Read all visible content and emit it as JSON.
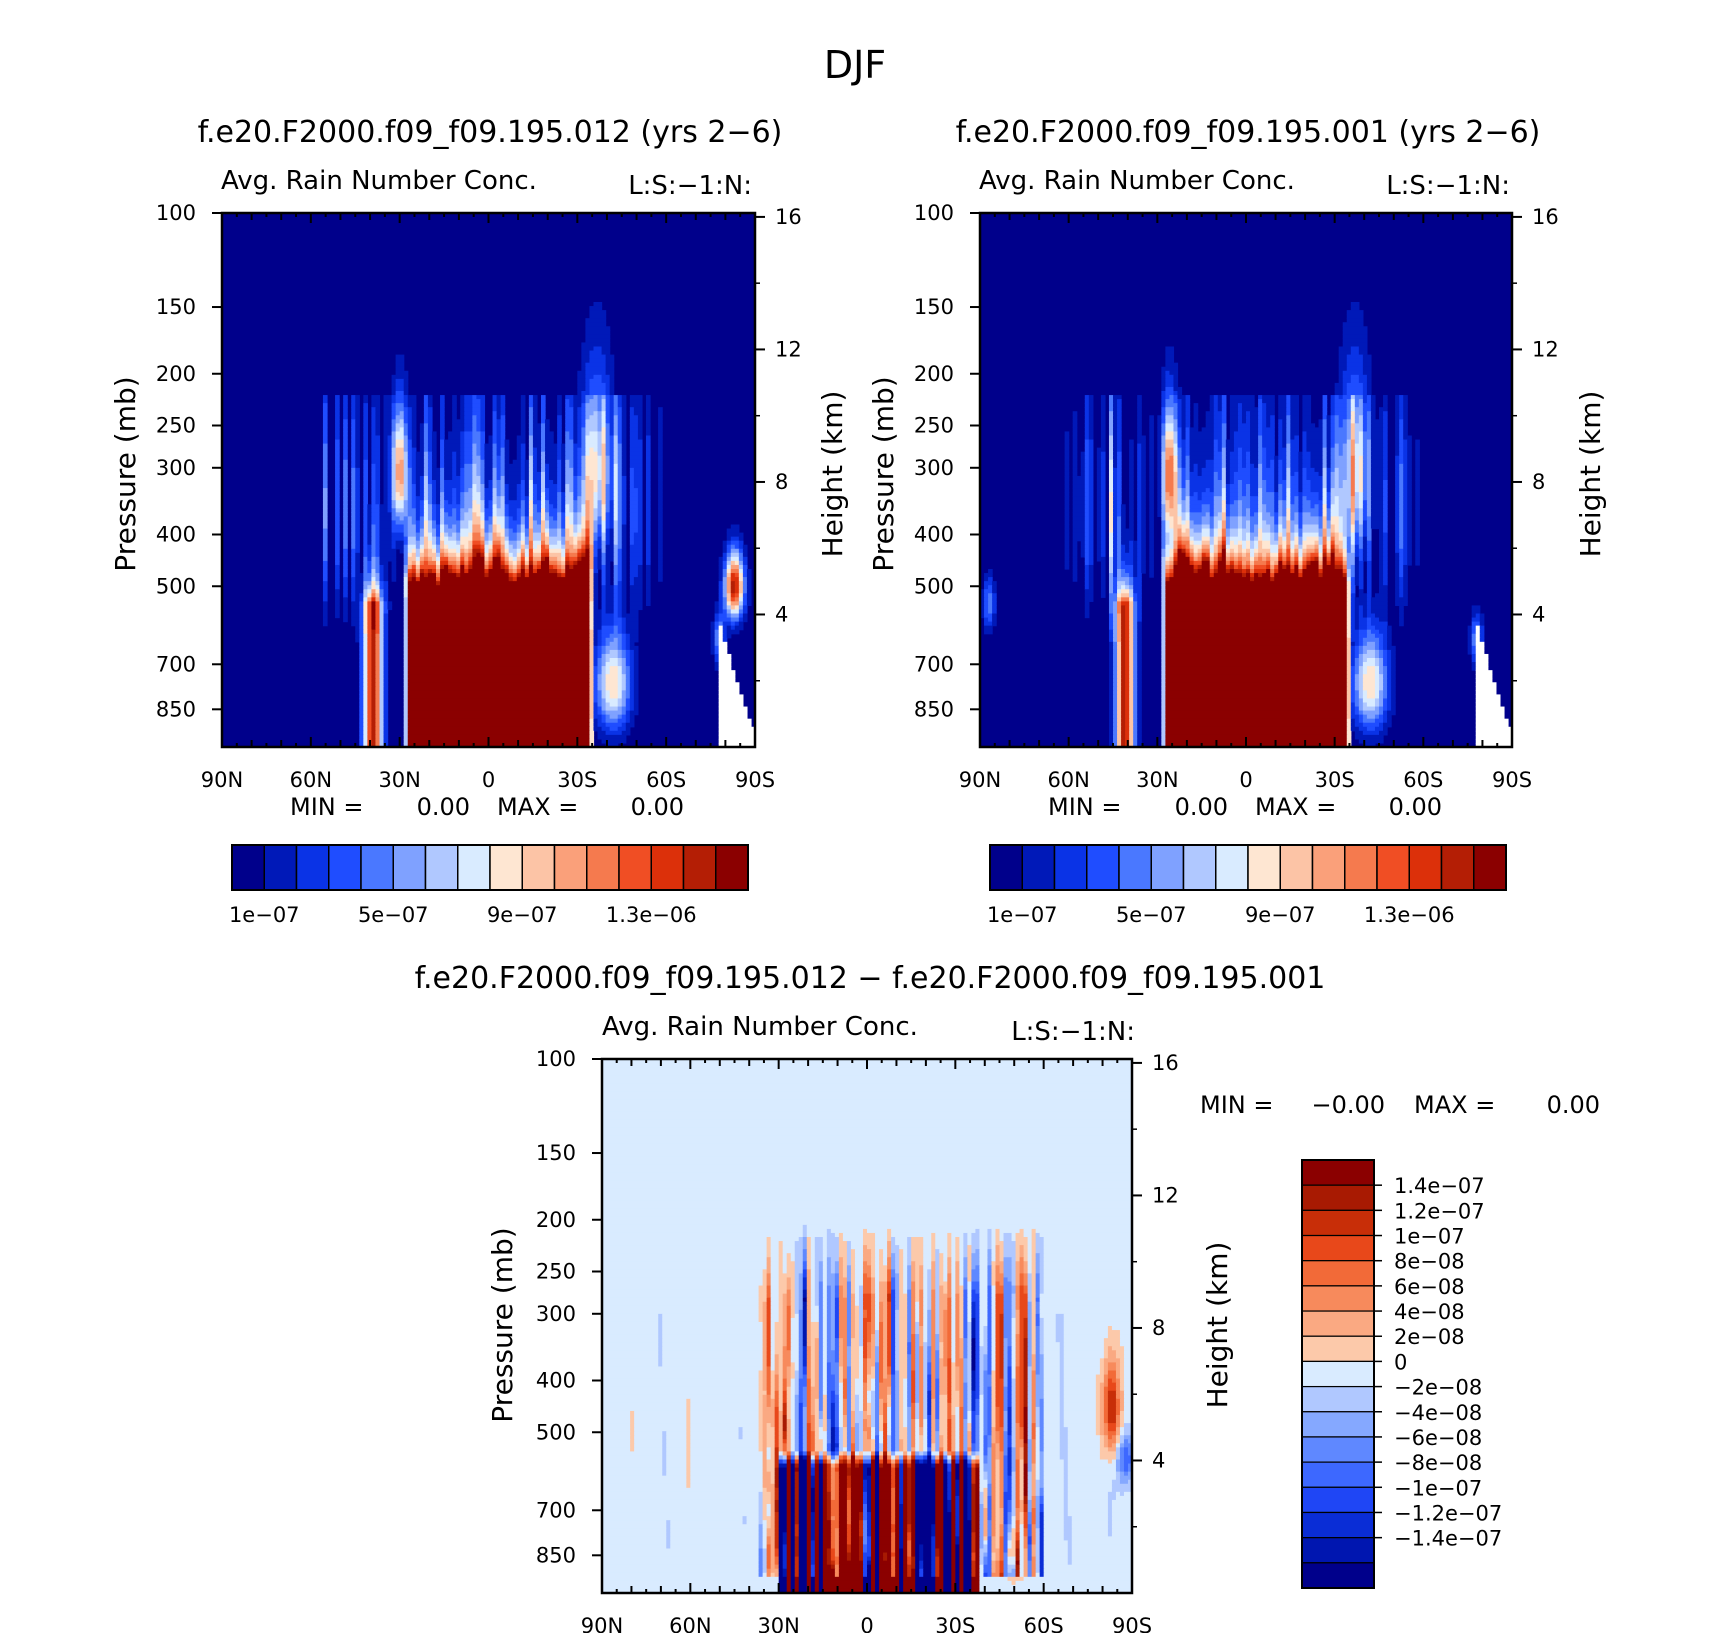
{
  "page_title": "DJF",
  "colors": {
    "blue_scale": [
      "#00008b",
      "#0019b8",
      "#0a33e6",
      "#1f4dff",
      "#4a78ff",
      "#7fa1ff",
      "#b0c8ff",
      "#d9ebff"
    ],
    "red_scale": [
      "#fee6d2",
      "#fcc4a6",
      "#faa07a",
      "#f57a4e",
      "#f04e24",
      "#dc300a",
      "#b41e05",
      "#8b0000"
    ],
    "diff_neg": [
      "#00008b",
      "#0016b0",
      "#0a2dd6",
      "#1f46f5",
      "#3d68ff",
      "#5f88ff",
      "#85a8ff",
      "#b0c8ff",
      "#d9ebff"
    ],
    "diff_pos": [
      "#fee6d2",
      "#fcc9aa",
      "#faa982",
      "#f78a5c",
      "#f26a38",
      "#e8481a",
      "#c82e08",
      "#a81a02",
      "#8b0000"
    ]
  },
  "chart_data": [
    {
      "type": "heatmap",
      "title": "f.e20.F2000.f09_f09.195.012 (yrs 2−6)",
      "subtitle": "Avg. Rain Number Conc.",
      "right_label": "L:S:−1:N:",
      "ylabel": "Pressure (mb)",
      "y2label": "Height (km)",
      "x_ticks": [
        "90N",
        "60N",
        "30N",
        "0",
        "30S",
        "60S",
        "90S"
      ],
      "y_ticks": [
        100,
        150,
        200,
        250,
        300,
        400,
        500,
        700,
        850
      ],
      "y2_ticks": [
        16,
        12,
        8,
        4
      ],
      "ylim": [
        100,
        1000
      ],
      "min_text": "MIN =",
      "min_value": "0.00",
      "max_text": "MAX =",
      "max_value": "0.00",
      "colorbar_labels": [
        "1e−07",
        "5e−07",
        "9e−07",
        "1.3e−06"
      ]
    },
    {
      "type": "heatmap",
      "title": "f.e20.F2000.f09_f09.195.001 (yrs 2−6)",
      "subtitle": "Avg. Rain Number Conc.",
      "right_label": "L:S:−1:N:",
      "ylabel": "Pressure (mb)",
      "y2label": "Height (km)",
      "x_ticks": [
        "90N",
        "60N",
        "30N",
        "0",
        "30S",
        "60S",
        "90S"
      ],
      "y_ticks": [
        100,
        150,
        200,
        250,
        300,
        400,
        500,
        700,
        850
      ],
      "y2_ticks": [
        16,
        12,
        8,
        4
      ],
      "ylim": [
        100,
        1000
      ],
      "min_text": "MIN =",
      "min_value": "0.00",
      "max_text": "MAX =",
      "max_value": "0.00",
      "colorbar_labels": [
        "1e−07",
        "5e−07",
        "9e−07",
        "1.3e−06"
      ]
    },
    {
      "type": "heatmap",
      "title": "f.e20.F2000.f09_f09.195.012 − f.e20.F2000.f09_f09.195.001",
      "subtitle": "Avg. Rain Number Conc.",
      "right_label": "L:S:−1:N:",
      "ylabel": "Pressure (mb)",
      "y2label": "Height (km)",
      "x_ticks": [
        "90N",
        "60N",
        "30N",
        "0",
        "30S",
        "60S",
        "90S"
      ],
      "y_ticks": [
        100,
        150,
        200,
        250,
        300,
        400,
        500,
        700,
        850
      ],
      "y2_ticks": [
        16,
        12,
        8,
        4
      ],
      "ylim": [
        100,
        1000
      ],
      "min_text": "MIN =",
      "min_value": "−0.00",
      "max_text": "MAX =",
      "max_value": "0.00",
      "colorbar_labels": [
        "1.4e−07",
        "1.2e−07",
        "1e−07",
        "8e−08",
        "6e−08",
        "4e−08",
        "2e−08",
        "0",
        "−2e−08",
        "−4e−08",
        "−6e−08",
        "−8e−08",
        "−1e−07",
        "−1.2e−07",
        "−1.4e−07"
      ]
    }
  ]
}
